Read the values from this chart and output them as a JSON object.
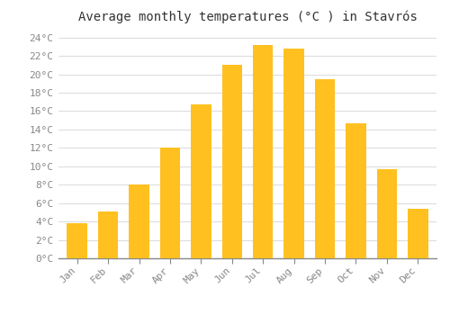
{
  "title": "Average monthly temperatures (°C ) in Stavrós",
  "months": [
    "Jan",
    "Feb",
    "Mar",
    "Apr",
    "May",
    "Jun",
    "Jul",
    "Aug",
    "Sep",
    "Oct",
    "Nov",
    "Dec"
  ],
  "values": [
    3.8,
    5.1,
    8.0,
    12.0,
    16.7,
    21.0,
    23.2,
    22.8,
    19.5,
    14.7,
    9.7,
    5.4
  ],
  "bar_color_top": "#FFC020",
  "bar_color_bottom": "#FFA000",
  "bar_edge_color": "none",
  "ylim": [
    0,
    25
  ],
  "yticks": [
    0,
    2,
    4,
    6,
    8,
    10,
    12,
    14,
    16,
    18,
    20,
    22,
    24
  ],
  "background_color": "#FFFFFF",
  "grid_color": "#DDDDDD",
  "title_fontsize": 10,
  "tick_fontsize": 8,
  "font_family": "monospace",
  "bar_width": 0.65,
  "figsize": [
    5.0,
    3.5
  ],
  "dpi": 100
}
